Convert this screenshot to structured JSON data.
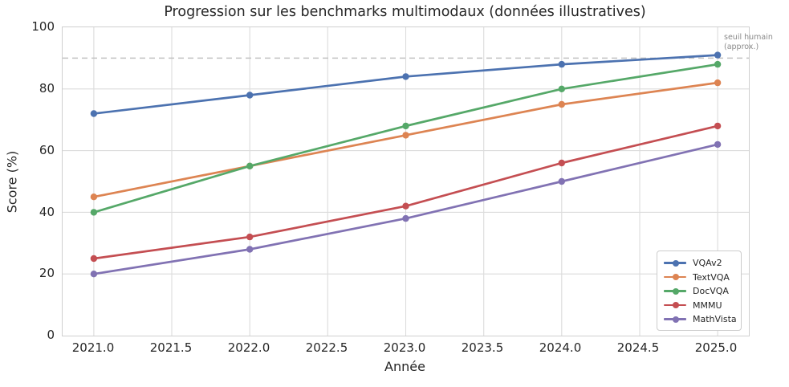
{
  "title": "Progression sur les benchmarks multimodaux (données illustratives)",
  "chart_data": {
    "type": "line",
    "title": "Progression sur les benchmarks multimodaux (données illustratives)",
    "xlabel": "Année",
    "ylabel": "Score (%)",
    "x": [
      2021,
      2022,
      2023,
      2024,
      2025
    ],
    "xlim": [
      2020.8,
      2025.2
    ],
    "ylim": [
      0,
      100
    ],
    "grid": true,
    "xtick_labels": [
      "2021.0",
      "2021.5",
      "2022.0",
      "2022.5",
      "2023.0",
      "2023.5",
      "2024.0",
      "2024.5",
      "2025.0"
    ],
    "xtick_values": [
      2021,
      2021.5,
      2022,
      2022.5,
      2023,
      2023.5,
      2024,
      2024.5,
      2025
    ],
    "ytick_labels": [
      "100",
      "80",
      "60",
      "40",
      "20",
      "0"
    ],
    "ytick_values": [
      100,
      80,
      60,
      40,
      20,
      0
    ],
    "legend_position": "lower right",
    "series": [
      {
        "name": "VQAv2",
        "color": "#4C72B0",
        "values": [
          72,
          78,
          84,
          88,
          91
        ]
      },
      {
        "name": "TextVQA",
        "color": "#DD8452",
        "values": [
          45,
          55,
          65,
          75,
          82
        ]
      },
      {
        "name": "DocVQA",
        "color": "#55A868",
        "values": [
          40,
          55,
          68,
          80,
          88
        ]
      },
      {
        "name": "MMMU",
        "color": "#C44E52",
        "values": [
          25,
          32,
          42,
          56,
          68
        ]
      },
      {
        "name": "MathVista",
        "color": "#8172B3",
        "values": [
          20,
          28,
          38,
          50,
          62
        ]
      }
    ],
    "threshold": {
      "value": 90,
      "color": "#c2c2c2",
      "label_lines": [
        "seuil humain",
        "(approx.)"
      ]
    },
    "colors": {
      "grid": "#dcdcdc",
      "spine": "#cfcfcf",
      "text": "#262626",
      "annotation": "#8a8a8a"
    }
  }
}
